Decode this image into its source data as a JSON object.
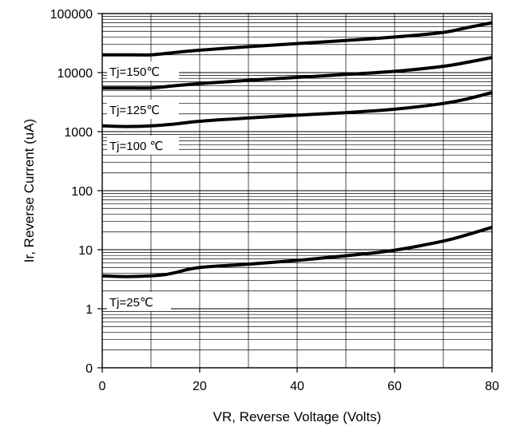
{
  "chart_data": {
    "type": "line",
    "title": "",
    "xlabel": "VR, Reverse Voltage (Volts)",
    "ylabel": "Ir, Reverse Current (uA)",
    "x_scale": "linear",
    "y_scale": "log",
    "xlim": [
      0,
      80
    ],
    "ylim": [
      0.1,
      100000
    ],
    "grid": true,
    "x_ticks": [
      0,
      20,
      40,
      60,
      80
    ],
    "x_tick_labels": [
      "0",
      "20",
      "40",
      "60",
      "80"
    ],
    "y_ticks": [
      0.1,
      1,
      10,
      100,
      1000,
      10000,
      100000
    ],
    "y_tick_labels": [
      "0",
      "1",
      "10",
      "100",
      "1000",
      "10000",
      "100000"
    ],
    "series": [
      {
        "name": "Tj=150℃",
        "x": [
          0,
          5,
          10,
          15,
          20,
          30,
          40,
          50,
          60,
          70,
          75,
          80
        ],
        "y": [
          20000,
          20000,
          20000,
          22000,
          24000,
          27500,
          31000,
          35000,
          40000,
          48000,
          58000,
          70000
        ]
      },
      {
        "name": "Tj=125℃",
        "x": [
          0,
          5,
          10,
          15,
          20,
          30,
          40,
          50,
          60,
          70,
          75,
          80
        ],
        "y": [
          5500,
          5500,
          5500,
          6000,
          6500,
          7400,
          8300,
          9300,
          10500,
          12800,
          15000,
          18000
        ]
      },
      {
        "name": "Tj=100℃",
        "x": [
          0,
          5,
          10,
          15,
          20,
          30,
          40,
          50,
          60,
          70,
          75,
          80
        ],
        "y": [
          1250,
          1220,
          1250,
          1350,
          1500,
          1700,
          1900,
          2100,
          2400,
          3000,
          3600,
          4600
        ]
      },
      {
        "name": "Tj=25℃",
        "x": [
          0,
          5,
          10,
          13,
          15,
          20,
          30,
          40,
          50,
          60,
          70,
          75,
          80
        ],
        "y": [
          3.6,
          3.5,
          3.6,
          3.8,
          4.1,
          5,
          5.7,
          6.6,
          7.9,
          9.8,
          14,
          18,
          24
        ]
      }
    ],
    "annotations": [
      {
        "text": "Tj=150℃",
        "series": 0
      },
      {
        "text": "Tj=125℃",
        "series": 1
      },
      {
        "text": "Tj=100 ℃",
        "series": 2
      },
      {
        "text": "Tj=25℃",
        "series": 3
      }
    ]
  }
}
